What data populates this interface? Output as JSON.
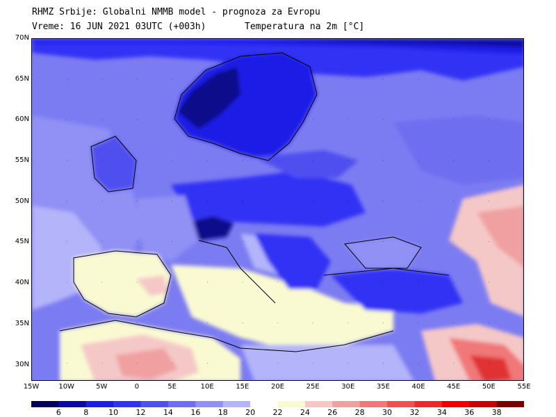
{
  "header": {
    "line1": "RHMZ Srbije: Globalni NMMB model - prognoza za Evropu",
    "line2": "Vreme: 16 JUN 2021 03UTC (+003h)",
    "line3": "Temperatura na 2m [°C]"
  },
  "map": {
    "lat_ticks": [
      "70N",
      "65N",
      "60N",
      "55N",
      "50N",
      "45N",
      "40N",
      "35N",
      "30N"
    ],
    "lon_ticks": [
      "15W",
      "10W",
      "5W",
      "0",
      "5E",
      "10E",
      "15E",
      "20E",
      "25E",
      "30E",
      "35E",
      "40E",
      "45E",
      "50E",
      "55E"
    ],
    "lon_range": [
      -15,
      55
    ],
    "lat_range": [
      28,
      70
    ]
  },
  "legend": {
    "colors": [
      "#00005a",
      "#0a0aa0",
      "#1e1ee6",
      "#3232f5",
      "#5050f0",
      "#6e6ef0",
      "#9090f5",
      "#b4b4fa",
      "#ffffff",
      "#fafad2",
      "#f5c8c8",
      "#f0a0a0",
      "#f07878",
      "#f05050",
      "#f02828",
      "#f00000",
      "#c80000",
      "#780000"
    ],
    "labels": [
      "6",
      "8",
      "10",
      "12",
      "14",
      "16",
      "18",
      "20",
      "22",
      "24",
      "26",
      "28",
      "30",
      "32",
      "34",
      "36",
      "38"
    ]
  },
  "colors": {
    "sea_default": "#7c7cf2",
    "cold": "#1e1ee6",
    "very_cold": "#0a0a8c",
    "mild": "#b4b4fa",
    "warm": "#fafad2",
    "hot": "#f0a0a0",
    "very_hot": "#e03030"
  }
}
